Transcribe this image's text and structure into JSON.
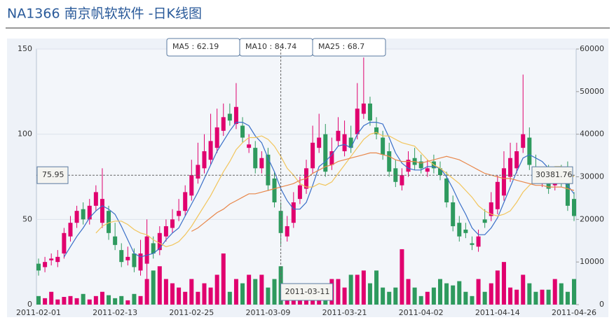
{
  "chart_data": {
    "type": "candlestick",
    "title": "NA1366   南京帆软软件 -日K线图",
    "categories": [
      "2011-02-01",
      null,
      null,
      null,
      null,
      null,
      null,
      null,
      null,
      null,
      null,
      null,
      "2011-02-13",
      null,
      null,
      null,
      null,
      null,
      null,
      null,
      null,
      null,
      null,
      null,
      "2011-02-25",
      null,
      null,
      null,
      null,
      null,
      null,
      null,
      null,
      null,
      null,
      null,
      "2011-03-09",
      null,
      null,
      null,
      null,
      null,
      null,
      null,
      null,
      null,
      null,
      null,
      "2011-03-21",
      null,
      null,
      null,
      null,
      null,
      null,
      null,
      null,
      null,
      null,
      null,
      "2011-04-02",
      null,
      null,
      null,
      null,
      null,
      null,
      null,
      null,
      null,
      null,
      null,
      "2011-04-14",
      null,
      null,
      null,
      null,
      null,
      null,
      null,
      null,
      null,
      null,
      null,
      "2011-04-26"
    ],
    "open": [
      24,
      22,
      26,
      25,
      30,
      40,
      48,
      56,
      50,
      58,
      48,
      55,
      40,
      32,
      26,
      30,
      20,
      24,
      36,
      32,
      40,
      45,
      52,
      55,
      64,
      74,
      80,
      85,
      92,
      102,
      112,
      106,
      105,
      92,
      92,
      80,
      88,
      74,
      55,
      40,
      48,
      62,
      68,
      80,
      92,
      100,
      82,
      96,
      90,
      98,
      100,
      112,
      118,
      104,
      98,
      90,
      80,
      70,
      78,
      86,
      84,
      78,
      84,
      80,
      74,
      60,
      48,
      44,
      36,
      34,
      50,
      52,
      56,
      64,
      75,
      80,
      92,
      98,
      80,
      72,
      78,
      70,
      78,
      80,
      62
    ],
    "high": [
      27,
      28,
      30,
      32,
      45,
      52,
      58,
      60,
      62,
      70,
      80,
      58,
      48,
      36,
      34,
      33,
      38,
      50,
      40,
      46,
      50,
      56,
      62,
      70,
      85,
      95,
      100,
      112,
      115,
      118,
      118,
      130,
      110,
      100,
      96,
      90,
      92,
      78,
      60,
      52,
      66,
      75,
      85,
      105,
      112,
      106,
      98,
      110,
      108,
      105,
      130,
      145,
      122,
      110,
      102,
      95,
      85,
      80,
      90,
      92,
      88,
      85,
      88,
      84,
      78,
      64,
      52,
      48,
      40,
      44,
      56,
      66,
      76,
      90,
      95,
      95,
      135,
      104,
      88,
      80,
      82,
      80,
      82,
      84,
      66
    ],
    "low": [
      17,
      19,
      23,
      22,
      27,
      37,
      45,
      47,
      47,
      55,
      45,
      38,
      32,
      22,
      23,
      19,
      17,
      15,
      27,
      29,
      37,
      42,
      49,
      52,
      61,
      71,
      77,
      82,
      89,
      99,
      105,
      103,
      95,
      89,
      77,
      77,
      67,
      57,
      35,
      37,
      45,
      59,
      65,
      77,
      89,
      75,
      79,
      93,
      87,
      89,
      97,
      109,
      105,
      97,
      85,
      75,
      69,
      67,
      75,
      79,
      77,
      75,
      77,
      73,
      57,
      43,
      37,
      39,
      32,
      31,
      45,
      49,
      53,
      61,
      72,
      77,
      89,
      79,
      71,
      69,
      65,
      67,
      69,
      55,
      49
    ],
    "close": [
      20,
      25,
      27,
      28,
      42,
      48,
      55,
      50,
      58,
      66,
      62,
      42,
      35,
      25,
      28,
      22,
      30,
      40,
      30,
      42,
      46,
      50,
      55,
      66,
      76,
      82,
      90,
      96,
      104,
      110,
      108,
      116,
      98,
      94,
      80,
      86,
      70,
      60,
      42,
      46,
      60,
      70,
      80,
      95,
      98,
      78,
      90,
      102,
      100,
      92,
      115,
      118,
      108,
      100,
      88,
      78,
      72,
      76,
      85,
      82,
      80,
      80,
      80,
      76,
      60,
      46,
      40,
      42,
      35,
      40,
      48,
      60,
      72,
      80,
      86,
      90,
      100,
      82,
      74,
      74,
      68,
      76,
      72,
      58,
      52
    ],
    "volume": [
      2000,
      1500,
      3000,
      1200,
      1800,
      2000,
      1500,
      2500,
      1200,
      2000,
      3000,
      2200,
      1500,
      2000,
      1000,
      2500,
      2000,
      6000,
      8000,
      9000,
      6000,
      5000,
      4000,
      3000,
      6000,
      3000,
      5000,
      4000,
      7000,
      12000,
      3000,
      6000,
      5000,
      7000,
      6000,
      7000,
      4000,
      6000,
      9000,
      4000,
      3000,
      2000,
      3000,
      4000,
      2500,
      5000,
      6000,
      6000,
      4000,
      7000,
      7000,
      8000,
      5000,
      8000,
      4000,
      3000,
      4000,
      13000,
      6000,
      4000,
      2000,
      3000,
      4000,
      6000,
      5000,
      4500,
      5500,
      3000,
      2000,
      6000,
      3000,
      5000,
      8000,
      10000,
      4000,
      3500,
      7000,
      5000,
      3000,
      3500,
      3500,
      6000,
      5000,
      3000,
      6000
    ],
    "up_color": "#e0006e",
    "down_color": "#2e9a5e",
    "moving_averages": [
      {
        "legend_label": "MA5 : 62.19",
        "color": "#3a6fc8",
        "values": [
          null,
          null,
          null,
          null,
          28,
          34,
          40,
          45,
          51,
          55,
          58,
          56,
          53,
          46,
          38,
          30,
          28,
          29,
          30,
          33,
          38,
          42,
          45,
          52,
          59,
          66,
          74,
          82,
          90,
          96,
          102,
          107,
          107,
          105,
          99,
          95,
          86,
          78,
          68,
          61,
          56,
          56,
          60,
          70,
          81,
          84,
          88,
          93,
          94,
          92,
          100,
          105,
          107,
          107,
          106,
          98,
          89,
          83,
          80,
          79,
          79,
          81,
          81,
          80,
          75,
          68,
          60,
          53,
          45,
          41,
          41,
          45,
          51,
          60,
          69,
          78,
          86,
          88,
          86,
          84,
          80,
          75,
          73,
          70,
          65
        ]
      },
      {
        "legend_label": "MA10 : 84.74",
        "color": "#f2c55c",
        "values": [
          null,
          null,
          null,
          null,
          null,
          null,
          null,
          null,
          null,
          42,
          46,
          48,
          49,
          49,
          47,
          44,
          42,
          41,
          38,
          36,
          34,
          35,
          37,
          41,
          46,
          52,
          58,
          64,
          71,
          78,
          84,
          91,
          95,
          98,
          98,
          99,
          97,
          93,
          87,
          80,
          76,
          71,
          69,
          69,
          71,
          70,
          72,
          77,
          82,
          87,
          92,
          97,
          100,
          101,
          99,
          99,
          97,
          95,
          94,
          93,
          89,
          85,
          82,
          80,
          77,
          74,
          71,
          67,
          63,
          58,
          55,
          53,
          52,
          53,
          55,
          60,
          66,
          70,
          73,
          77,
          79,
          81,
          81,
          78,
          75
        ]
      },
      {
        "legend_label": "MA25 : 68.7",
        "color": "#e8874a",
        "values": [
          null,
          null,
          null,
          null,
          null,
          null,
          null,
          null,
          null,
          null,
          null,
          null,
          null,
          null,
          null,
          null,
          null,
          null,
          null,
          null,
          null,
          null,
          null,
          null,
          43,
          45,
          48,
          51,
          54,
          56,
          59,
          61,
          63,
          65,
          65,
          66,
          67,
          68,
          69,
          70,
          71,
          73,
          74,
          77,
          79,
          81,
          82,
          84,
          85,
          86,
          87,
          88,
          89,
          89,
          88,
          87,
          85,
          84,
          84,
          84,
          83,
          84,
          85,
          86,
          87,
          86,
          85,
          83,
          81,
          79,
          77,
          76,
          75,
          74,
          74,
          73,
          72,
          71,
          70,
          70,
          69,
          69,
          69,
          68,
          67
        ]
      }
    ],
    "crosshair": {
      "date": "2011-03-11",
      "price": 75.95,
      "volume_label": "30381.76"
    },
    "ylim": [
      0,
      150
    ],
    "yticks": [
      0,
      50,
      100,
      150
    ],
    "y2lim": [
      0,
      60000
    ],
    "y2ticks": [
      0,
      10000,
      20000,
      30000,
      40000,
      50000,
      60000
    ],
    "grid": true
  }
}
